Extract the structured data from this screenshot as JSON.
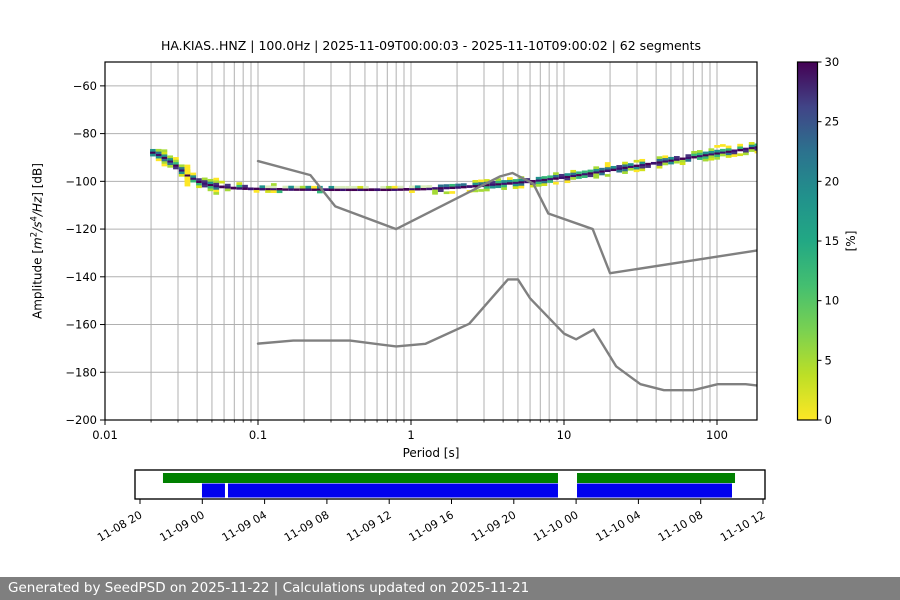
{
  "title": "HA.KIAS..HNZ | 100.0Hz | 2025-11-09T00:00:03 - 2025-11-10T09:00:02 | 62 segments",
  "footer": "Generated by SeedPSD on 2025-11-22 | Calculations updated on 2025-11-21",
  "axes": {
    "xlabel": "Period [s]",
    "ylabel": {
      "prefix": "Amplitude [",
      "m": "m",
      "m_exp": "2",
      "s": "/s",
      "s_exp": "4",
      "hz": "/Hz",
      "suffix": "] [dB]"
    },
    "x_tick_labels": [
      "0.01",
      "0.1",
      "1",
      "10",
      "100"
    ],
    "x_tick_values": [
      0.01,
      0.1,
      1,
      10,
      100
    ],
    "y_tick_labels": [
      "−60",
      "−80",
      "−100",
      "−120",
      "−140",
      "−160",
      "−180",
      "−200"
    ],
    "y_tick_values": [
      -60,
      -80,
      -100,
      -120,
      -140,
      -160,
      -180,
      -200
    ]
  },
  "colorbar": {
    "label": "[%]",
    "tick_labels": [
      "0",
      "5",
      "10",
      "15",
      "20",
      "25",
      "30"
    ],
    "tick_values": [
      0,
      5,
      10,
      15,
      20,
      25,
      30
    ],
    "min": 0,
    "max": 30,
    "gradient_bottom_to_top": [
      "#fde725",
      "#bddf26",
      "#7ad151",
      "#44bf70",
      "#22a884",
      "#21918c",
      "#2c728e",
      "#414487",
      "#440154"
    ]
  },
  "cell_colors": {
    "core": [
      "#440154",
      "#3b0f70"
    ],
    "mid": [
      "#21918c",
      "#2c728e",
      "#35b779",
      "#46327e"
    ],
    "edge": [
      "#fde725",
      "#d2e21b",
      "#a5db36"
    ],
    "pale": "#d9edbc"
  },
  "timeline": {
    "tick_labels": [
      "11-08 20",
      "11-09 00",
      "11-09 04",
      "11-09 08",
      "11-09 12",
      "11-09 16",
      "11-09 20",
      "11-10 00",
      "11-10 04",
      "11-10 08",
      "11-10 12"
    ],
    "green_color": "#008000",
    "blue_color": "#0000ee",
    "green_segments_frac": [
      [
        0.0444,
        0.6714
      ],
      [
        0.7016,
        0.9524
      ]
    ],
    "blue_segments_frac": [
      [
        0.1063,
        0.1428
      ],
      [
        0.1476,
        0.6714
      ],
      [
        0.7016,
        0.9476
      ]
    ]
  },
  "chart_data": {
    "type": "heatmap",
    "title": "HA.KIAS..HNZ | 100.0Hz | 2025-11-09T00:00:03 - 2025-11-10T09:00:02 | 62 segments",
    "xlabel": "Period [s]",
    "ylabel": "Amplitude [m^2/s^4/Hz] [dB]",
    "xscale": "log",
    "xlim": [
      0.01,
      181
    ],
    "ylim": [
      -200,
      -50
    ],
    "grid": true,
    "colorbar": {
      "label": "[%]",
      "range": [
        0,
        30
      ],
      "colormap": "viridis reversed (0%=yellow, 30%=dark purple)"
    },
    "ppsd_mode_curve": {
      "periods_s": [
        0.02,
        0.024,
        0.028,
        0.033,
        0.04,
        0.05,
        0.065,
        0.09,
        0.15,
        0.3,
        0.7,
        1.2,
        2.0,
        3.5,
        6.0,
        10.0,
        17.0,
        31.0,
        57.0,
        104.0,
        181.0
      ],
      "db": [
        -88.0,
        -90.5,
        -93.5,
        -97.5,
        -100.5,
        -102.0,
        -102.8,
        -103.2,
        -103.4,
        -103.5,
        -103.5,
        -103.2,
        -102.5,
        -101.3,
        -100.0,
        -98.2,
        -95.9,
        -93.2,
        -90.6,
        -88.0,
        -85.6
      ]
    },
    "noise_models": {
      "nhnm": {
        "periods_s": [
          0.1,
          0.22,
          0.32,
          0.8,
          3.8,
          4.6,
          6.3,
          7.9,
          15.4,
          20.0,
          181.0
        ],
        "db": [
          -91.5,
          -97.4,
          -110.5,
          -120.0,
          -98.0,
          -96.5,
          -101.0,
          -113.5,
          -120.0,
          -138.5,
          -129.0
        ]
      },
      "nlnm": {
        "periods_s": [
          0.1,
          0.17,
          0.4,
          0.8,
          1.24,
          2.4,
          4.3,
          5.0,
          6.0,
          10.0,
          12.0,
          15.6,
          21.9,
          31.6,
          45.0,
          70.0,
          101.0,
          154.0,
          181.0
        ],
        "db": [
          -168.0,
          -166.7,
          -166.7,
          -169.2,
          -168.1,
          -159.7,
          -141.1,
          -141.1,
          -149.0,
          -163.8,
          -166.2,
          -162.1,
          -177.5,
          -185.0,
          -187.5,
          -187.5,
          -185.0,
          -185.0,
          -185.5
        ]
      }
    }
  }
}
